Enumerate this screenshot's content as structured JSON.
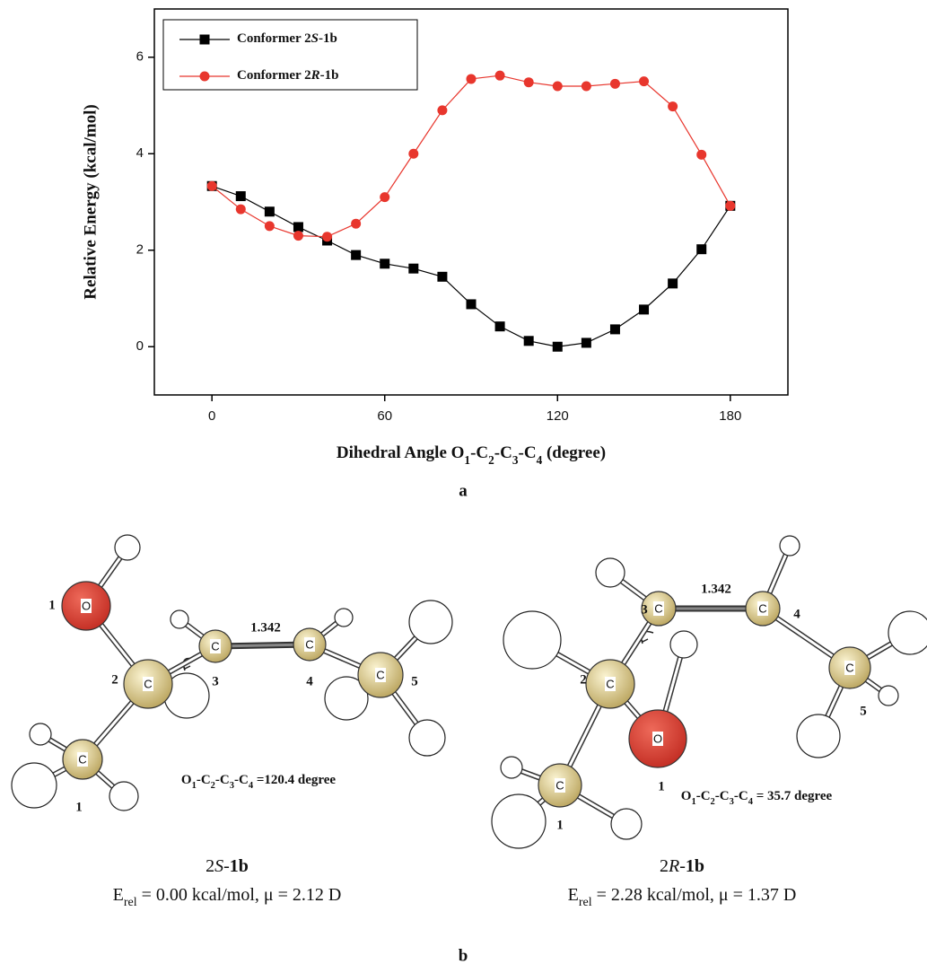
{
  "chart_data": {
    "type": "line",
    "x_label": "Dihedral Angle O1-C2-C3-C4 (degree)",
    "y_label": "Relative Energy (kcal/mol)",
    "x": [
      0,
      10,
      20,
      30,
      40,
      50,
      60,
      70,
      80,
      90,
      100,
      110,
      120,
      130,
      140,
      150,
      160,
      170,
      180
    ],
    "series": [
      {
        "name": "Conformer 2S-1b",
        "color": "#000000",
        "marker": "square",
        "values": [
          3.33,
          3.12,
          2.8,
          2.48,
          2.2,
          1.9,
          1.72,
          1.62,
          1.45,
          0.88,
          0.42,
          0.12,
          0.0,
          0.08,
          0.36,
          0.77,
          1.31,
          2.02,
          2.92
        ]
      },
      {
        "name": "Conformer 2R-1b",
        "color": "#e8362d",
        "marker": "circle",
        "values": [
          3.33,
          2.85,
          2.5,
          2.3,
          2.28,
          2.55,
          3.1,
          4.0,
          4.9,
          5.55,
          5.62,
          5.48,
          5.4,
          5.4,
          5.45,
          5.5,
          4.98,
          3.98,
          2.92
        ]
      }
    ],
    "xlim": [
      -20,
      200
    ],
    "xticks": [
      0,
      60,
      120,
      180
    ],
    "ylim": [
      -1,
      7
    ],
    "yticks": [
      0,
      2,
      4,
      6
    ],
    "legend": "upper left"
  },
  "panel_labels": [
    "a",
    "b"
  ],
  "molecules": [
    {
      "atoms": [
        "O",
        "C",
        "C",
        "C",
        "C",
        "C"
      ],
      "numbers": [
        "1",
        "2",
        "3",
        "4",
        "5",
        "1"
      ],
      "bond_length": "1.342",
      "dihedral": "O1-C2-C3-C4 =120.4 degree",
      "name": "2S-1b",
      "energy": "Erel = 0.00 kcal/mol, μ = 2.12 D"
    },
    {
      "atoms": [
        "O",
        "C",
        "C",
        "C",
        "C",
        "C"
      ],
      "numbers": [
        "1",
        "2",
        "3",
        "4",
        "5",
        "1"
      ],
      "bond_length": "1.342",
      "dihedral": "O1-C2-C3-C4 = 35.7 degree",
      "name": "2R-1b",
      "energy": "Erel = 2.28 kcal/mol, μ = 1.37 D"
    }
  ]
}
